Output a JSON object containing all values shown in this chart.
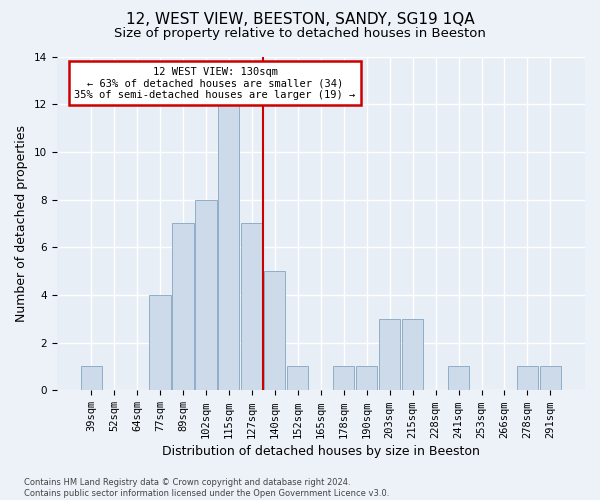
{
  "title": "12, WEST VIEW, BEESTON, SANDY, SG19 1QA",
  "subtitle": "Size of property relative to detached houses in Beeston",
  "xlabel": "Distribution of detached houses by size in Beeston",
  "ylabel": "Number of detached properties",
  "categories": [
    "39sqm",
    "52sqm",
    "64sqm",
    "77sqm",
    "89sqm",
    "102sqm",
    "115sqm",
    "127sqm",
    "140sqm",
    "152sqm",
    "165sqm",
    "178sqm",
    "190sqm",
    "203sqm",
    "215sqm",
    "228sqm",
    "241sqm",
    "253sqm",
    "266sqm",
    "278sqm",
    "291sqm"
  ],
  "values": [
    1,
    0,
    0,
    4,
    7,
    8,
    12,
    7,
    5,
    1,
    0,
    1,
    1,
    3,
    3,
    0,
    1,
    0,
    0,
    1,
    1
  ],
  "bar_color": "#cddaea",
  "bar_edge_color": "#90aec8",
  "ref_line_index": 7,
  "annotation_text": "12 WEST VIEW: 130sqm\n← 63% of detached houses are smaller (34)\n35% of semi-detached houses are larger (19) →",
  "annotation_box_facecolor": "#ffffff",
  "annotation_box_edgecolor": "#cc0000",
  "annotation_line_color": "#cc0000",
  "ylim": [
    0,
    14
  ],
  "yticks": [
    0,
    2,
    4,
    6,
    8,
    10,
    12,
    14
  ],
  "fig_background": "#edf2f9",
  "ax_background": "#e8eef6",
  "grid_color": "#ffffff",
  "footer": "Contains HM Land Registry data © Crown copyright and database right 2024.\nContains public sector information licensed under the Open Government Licence v3.0.",
  "title_fontsize": 11,
  "subtitle_fontsize": 9.5,
  "xlabel_fontsize": 9,
  "ylabel_fontsize": 9,
  "tick_fontsize": 7.5,
  "annotation_fontsize": 7.5,
  "footer_fontsize": 6
}
